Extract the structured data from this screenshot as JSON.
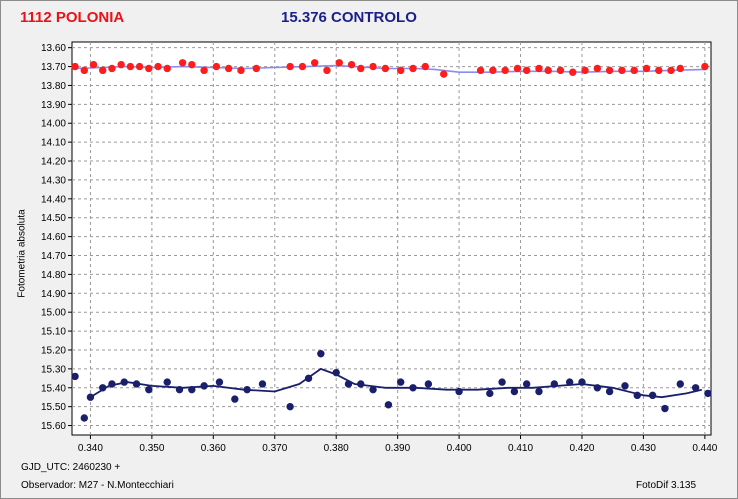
{
  "chart_data": {
    "type": "scatter",
    "title_left": "1112 POLONIA",
    "title_right": "15.376 CONTROLO",
    "ylabel": "Fotometria absoluta",
    "xlim": [
      0.337,
      0.441
    ],
    "ylim": [
      13.57,
      15.65
    ],
    "y_inverted": true,
    "grid": true,
    "x_ticks": [
      "0.340",
      "0.350",
      "0.360",
      "0.370",
      "0.380",
      "0.390",
      "0.400",
      "0.410",
      "0.420",
      "0.430",
      "0.440"
    ],
    "y_ticks": [
      "13.60",
      "13.70",
      "13.80",
      "13.90",
      "14.00",
      "14.10",
      "14.20",
      "14.30",
      "14.40",
      "14.50",
      "14.60",
      "14.70",
      "14.80",
      "14.90",
      "15.00",
      "15.10",
      "15.20",
      "15.30",
      "15.40",
      "15.50",
      "15.60"
    ],
    "series": [
      {
        "name": "1112 POLONIA",
        "marker_color": "#ff1c1c",
        "line_color": "#8b8bf5",
        "points": [
          [
            0.3375,
            13.7
          ],
          [
            0.339,
            13.72
          ],
          [
            0.3405,
            13.69
          ],
          [
            0.342,
            13.72
          ],
          [
            0.3435,
            13.71
          ],
          [
            0.345,
            13.69
          ],
          [
            0.3465,
            13.7
          ],
          [
            0.348,
            13.7
          ],
          [
            0.3495,
            13.71
          ],
          [
            0.351,
            13.7
          ],
          [
            0.3525,
            13.71
          ],
          [
            0.355,
            13.68
          ],
          [
            0.3565,
            13.69
          ],
          [
            0.3585,
            13.72
          ],
          [
            0.3605,
            13.7
          ],
          [
            0.3625,
            13.71
          ],
          [
            0.3645,
            13.72
          ],
          [
            0.367,
            13.71
          ],
          [
            0.3725,
            13.7
          ],
          [
            0.3745,
            13.7
          ],
          [
            0.3765,
            13.68
          ],
          [
            0.3785,
            13.72
          ],
          [
            0.3805,
            13.68
          ],
          [
            0.3825,
            13.69
          ],
          [
            0.384,
            13.71
          ],
          [
            0.386,
            13.7
          ],
          [
            0.388,
            13.71
          ],
          [
            0.3905,
            13.72
          ],
          [
            0.3925,
            13.71
          ],
          [
            0.3945,
            13.7
          ],
          [
            0.3975,
            13.74
          ],
          [
            0.4035,
            13.72
          ],
          [
            0.4055,
            13.72
          ],
          [
            0.4075,
            13.72
          ],
          [
            0.4095,
            13.71
          ],
          [
            0.411,
            13.72
          ],
          [
            0.413,
            13.71
          ],
          [
            0.4145,
            13.72
          ],
          [
            0.4165,
            13.72
          ],
          [
            0.4185,
            13.73
          ],
          [
            0.4205,
            13.72
          ],
          [
            0.4225,
            13.71
          ],
          [
            0.4245,
            13.72
          ],
          [
            0.4265,
            13.72
          ],
          [
            0.4285,
            13.72
          ],
          [
            0.4305,
            13.71
          ],
          [
            0.4325,
            13.72
          ],
          [
            0.4345,
            13.72
          ],
          [
            0.436,
            13.71
          ],
          [
            0.44,
            13.7
          ]
        ],
        "trend": [
          [
            0.3375,
            13.71
          ],
          [
            0.342,
            13.705
          ],
          [
            0.346,
            13.7
          ],
          [
            0.35,
            13.705
          ],
          [
            0.355,
            13.7
          ],
          [
            0.36,
            13.705
          ],
          [
            0.365,
            13.71
          ],
          [
            0.37,
            13.705
          ],
          [
            0.375,
            13.7
          ],
          [
            0.38,
            13.695
          ],
          [
            0.383,
            13.7
          ],
          [
            0.388,
            13.71
          ],
          [
            0.393,
            13.71
          ],
          [
            0.396,
            13.715
          ],
          [
            0.4,
            13.73
          ],
          [
            0.405,
            13.73
          ],
          [
            0.41,
            13.725
          ],
          [
            0.415,
            13.725
          ],
          [
            0.42,
            13.73
          ],
          [
            0.425,
            13.725
          ],
          [
            0.43,
            13.725
          ],
          [
            0.435,
            13.72
          ],
          [
            0.44,
            13.715
          ]
        ]
      },
      {
        "name": "15.376 CONTROLO",
        "marker_color": "#1a1f6b",
        "line_color": "#1a1f6b",
        "points": [
          [
            0.3375,
            15.34
          ],
          [
            0.339,
            15.56
          ],
          [
            0.34,
            15.45
          ],
          [
            0.342,
            15.4
          ],
          [
            0.3435,
            15.38
          ],
          [
            0.3455,
            15.37
          ],
          [
            0.3475,
            15.38
          ],
          [
            0.3495,
            15.41
          ],
          [
            0.3525,
            15.37
          ],
          [
            0.3545,
            15.41
          ],
          [
            0.3565,
            15.41
          ],
          [
            0.3585,
            15.39
          ],
          [
            0.361,
            15.37
          ],
          [
            0.3635,
            15.46
          ],
          [
            0.3655,
            15.41
          ],
          [
            0.368,
            15.38
          ],
          [
            0.3725,
            15.5
          ],
          [
            0.3755,
            15.35
          ],
          [
            0.3775,
            15.22
          ],
          [
            0.38,
            15.32
          ],
          [
            0.382,
            15.38
          ],
          [
            0.384,
            15.38
          ],
          [
            0.386,
            15.41
          ],
          [
            0.3885,
            15.49
          ],
          [
            0.3905,
            15.37
          ],
          [
            0.3925,
            15.4
          ],
          [
            0.395,
            15.38
          ],
          [
            0.4,
            15.42
          ],
          [
            0.405,
            15.43
          ],
          [
            0.407,
            15.37
          ],
          [
            0.409,
            15.42
          ],
          [
            0.411,
            15.38
          ],
          [
            0.413,
            15.42
          ],
          [
            0.4155,
            15.38
          ],
          [
            0.418,
            15.37
          ],
          [
            0.42,
            15.37
          ],
          [
            0.4225,
            15.4
          ],
          [
            0.4245,
            15.42
          ],
          [
            0.427,
            15.39
          ],
          [
            0.429,
            15.44
          ],
          [
            0.4315,
            15.44
          ],
          [
            0.4335,
            15.51
          ],
          [
            0.436,
            15.38
          ],
          [
            0.4385,
            15.4
          ],
          [
            0.4405,
            15.43
          ]
        ],
        "trend": [
          [
            0.34,
            15.45
          ],
          [
            0.341,
            15.43
          ],
          [
            0.343,
            15.39
          ],
          [
            0.346,
            15.37
          ],
          [
            0.35,
            15.39
          ],
          [
            0.355,
            15.4
          ],
          [
            0.36,
            15.39
          ],
          [
            0.365,
            15.41
          ],
          [
            0.37,
            15.42
          ],
          [
            0.374,
            15.38
          ],
          [
            0.3775,
            15.3
          ],
          [
            0.38,
            15.33
          ],
          [
            0.383,
            15.38
          ],
          [
            0.388,
            15.4
          ],
          [
            0.393,
            15.4
          ],
          [
            0.398,
            15.41
          ],
          [
            0.403,
            15.41
          ],
          [
            0.408,
            15.4
          ],
          [
            0.412,
            15.4
          ],
          [
            0.416,
            15.39
          ],
          [
            0.42,
            15.38
          ],
          [
            0.425,
            15.4
          ],
          [
            0.43,
            15.44
          ],
          [
            0.433,
            15.45
          ],
          [
            0.437,
            15.43
          ],
          [
            0.4395,
            15.41
          ]
        ]
      }
    ]
  },
  "footer": {
    "gjd": "GJD_UTC: 2460230 +",
    "observer": "Observador: M27 - N.Montecchiari",
    "software": "FotoDif 3.135"
  }
}
